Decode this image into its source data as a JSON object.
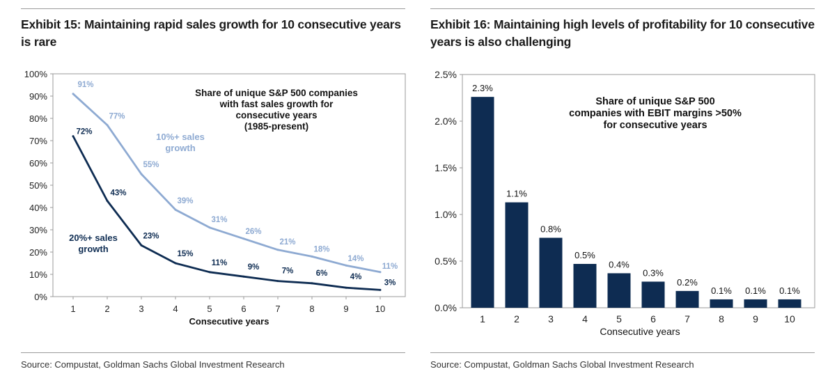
{
  "left": {
    "title": "Exhibit 15: Maintaining rapid sales growth for 10 consecutive years is rare",
    "source": "Source: Compustat, Goldman Sachs Global Investment Research"
  },
  "right": {
    "title": "Exhibit 16: Maintaining high levels of profitability for 10 consecutive years is also challenging",
    "source": "Source: Compustat, Goldman Sachs Global Investment Research"
  },
  "chart_data": [
    {
      "type": "line",
      "annotation": [
        "Share of unique S&P 500 companies",
        "with fast sales growth for",
        "consecutive years",
        "(1985-present)"
      ],
      "xlabel": "Consecutive years",
      "ylabel": "",
      "x": [
        1,
        2,
        3,
        4,
        5,
        6,
        7,
        8,
        9,
        10
      ],
      "ylim": [
        0,
        100
      ],
      "yticks": [
        "0%",
        "10%",
        "20%",
        "30%",
        "40%",
        "50%",
        "60%",
        "70%",
        "80%",
        "90%",
        "100%"
      ],
      "grid": false,
      "series": [
        {
          "name": "10%+ sales growth",
          "name_lines": [
            "10%+ sales",
            "growth"
          ],
          "color": "#8eaad2",
          "values": [
            91,
            77,
            55,
            39,
            31,
            26,
            21,
            18,
            14,
            11
          ],
          "labels": [
            "91%",
            "77%",
            "55%",
            "39%",
            "31%",
            "26%",
            "21%",
            "18%",
            "14%",
            "11%"
          ]
        },
        {
          "name": "20%+ sales growth",
          "name_lines": [
            "20%+ sales",
            "growth"
          ],
          "color": "#0e2c52",
          "values": [
            72,
            43,
            23,
            15,
            11,
            9,
            7,
            6,
            4,
            3
          ],
          "labels": [
            "72%",
            "43%",
            "23%",
            "15%",
            "11%",
            "9%",
            "7%",
            "6%",
            "4%",
            "3%"
          ]
        }
      ]
    },
    {
      "type": "bar",
      "annotation": [
        "Share of unique S&P 500",
        "companies with EBIT margins >50%",
        "for consecutive years"
      ],
      "xlabel": "Consecutive years",
      "ylabel": "",
      "categories": [
        "1",
        "2",
        "3",
        "4",
        "5",
        "6",
        "7",
        "8",
        "9",
        "10"
      ],
      "values": [
        2.26,
        1.13,
        0.75,
        0.47,
        0.37,
        0.28,
        0.18,
        0.09,
        0.09,
        0.09
      ],
      "labels": [
        "2.3%",
        "1.1%",
        "0.8%",
        "0.5%",
        "0.4%",
        "0.3%",
        "0.2%",
        "0.1%",
        "0.1%",
        "0.1%"
      ],
      "ylim": [
        0,
        2.5
      ],
      "yticks": [
        "0.0%",
        "0.5%",
        "1.0%",
        "1.5%",
        "2.0%",
        "2.5%"
      ],
      "grid": false,
      "color": "#0e2c52"
    }
  ]
}
